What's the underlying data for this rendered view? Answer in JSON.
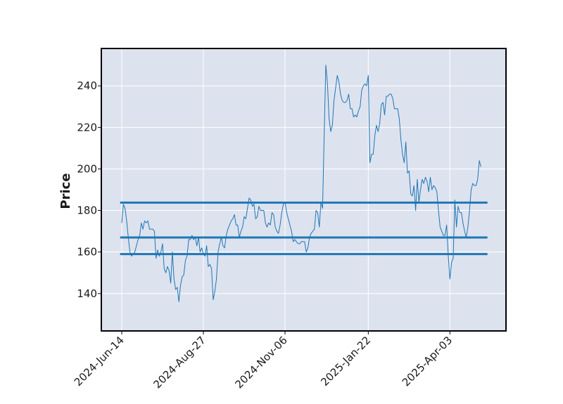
{
  "chart_data": {
    "type": "line",
    "title": "",
    "xlabel": "",
    "ylabel": "Price",
    "ylim": [
      122,
      258
    ],
    "y_ticks": [
      140,
      160,
      180,
      200,
      220,
      240
    ],
    "x_tick_labels": [
      "2024-Jun-14",
      "2024-Aug-27",
      "2024-Nov-06",
      "2025-Jan-22",
      "2025-Apr-03"
    ],
    "x_tick_index": [
      0,
      50,
      100,
      151,
      201
    ],
    "grid": true,
    "background": "#dde2ef",
    "colors": {
      "line": "#1f77b4",
      "grid": "#ffffff",
      "frame": "#000000"
    },
    "horizontal_lines": [
      {
        "y": 183.8,
        "x_start_index": -1,
        "x_end_index": 224
      },
      {
        "y": 167.0,
        "x_start_index": -1,
        "x_end_index": 224
      },
      {
        "y": 159.0,
        "x_start_index": -1,
        "x_end_index": 224
      }
    ],
    "series": [
      {
        "values": [
          174,
          183,
          181,
          175,
          167,
          160,
          158,
          159,
          160,
          163,
          166,
          168,
          174,
          171,
          175,
          174,
          175,
          171,
          171,
          171,
          170,
          157,
          161,
          158,
          160,
          164,
          152,
          150,
          153,
          151,
          145,
          160,
          147,
          142,
          143,
          136,
          144,
          148,
          149,
          156,
          158,
          166,
          166,
          168,
          166,
          167,
          163,
          167,
          160,
          162,
          159,
          158,
          163,
          153,
          154,
          152,
          137,
          141,
          147,
          160,
          164,
          167,
          163,
          162,
          168,
          171,
          173,
          175,
          176,
          178,
          173,
          173,
          167,
          170,
          172,
          177,
          176,
          181,
          186,
          185,
          182,
          183,
          176,
          177,
          182,
          180,
          180,
          180,
          174,
          172,
          174,
          173,
          179,
          178,
          172,
          170,
          169,
          173,
          179,
          183,
          184,
          179,
          176,
          173,
          170,
          165,
          166,
          165,
          164,
          164,
          165,
          165,
          165,
          160,
          162,
          167,
          169,
          170,
          171,
          180,
          179,
          172,
          184,
          181,
          217,
          250,
          241,
          224,
          218,
          221,
          233,
          239,
          245,
          242,
          236,
          233,
          232,
          232,
          233,
          236,
          229,
          229,
          225,
          226,
          225,
          228,
          230,
          238,
          240,
          241,
          240,
          245,
          203,
          207,
          207,
          216,
          221,
          218,
          222,
          231,
          232,
          226,
          235,
          235,
          236,
          236,
          234,
          229,
          229,
          229,
          224,
          214,
          207,
          203,
          213,
          198,
          199,
          188,
          187,
          192,
          180,
          195,
          184,
          190,
          195,
          193,
          196,
          194,
          189,
          196,
          190,
          192,
          191,
          189,
          180,
          172,
          170,
          168,
          168,
          173,
          158,
          147,
          155,
          157,
          185,
          172,
          182,
          179,
          179,
          174,
          170,
          167,
          172,
          180,
          190,
          193,
          192,
          192,
          195,
          204,
          201
        ]
      }
    ]
  }
}
